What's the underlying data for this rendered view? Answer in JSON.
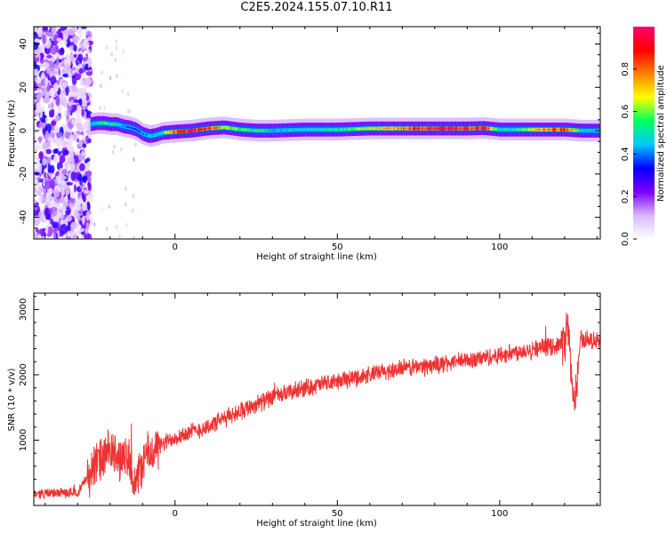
{
  "title": "C2E5.2024.155.07.10.R11",
  "colors": {
    "line": "#ee3333",
    "axis": "#000000",
    "colormap": [
      "#ffffff",
      "#d9b8ff",
      "#7a00ff",
      "#0000ff",
      "#00c8ff",
      "#00ff60",
      "#ffff00",
      "#ff8000",
      "#ff0000",
      "#ff0070"
    ]
  },
  "chart_data": [
    {
      "type": "heatmap",
      "title": "",
      "xlabel": "Height of straight line (km)",
      "ylabel": "Frequency (Hz)",
      "xlim": [
        -43.5,
        131
      ],
      "ylim": [
        -50,
        48
      ],
      "xticks": [
        0,
        50,
        100
      ],
      "yticks": [
        -40,
        -20,
        0,
        20,
        40
      ],
      "colorbar": {
        "label": "Normalized spectral amplitude",
        "range": [
          0,
          1
        ],
        "ticks": [
          0.0,
          0.2,
          0.4,
          0.6,
          0.8
        ]
      },
      "ridge": {
        "x": [
          -26,
          -24,
          -22,
          -20,
          -18,
          -16,
          -14,
          -12,
          -10,
          -8,
          -6,
          -4,
          0,
          5,
          10,
          15,
          20,
          25,
          30,
          40,
          50,
          60,
          70,
          80,
          90,
          95,
          100,
          105,
          110,
          115,
          120,
          125,
          131
        ],
        "y": [
          3,
          3.5,
          3.5,
          3,
          3,
          2,
          1.5,
          0.5,
          -1.5,
          -2.5,
          -2,
          -1,
          -0.5,
          0,
          1,
          1.5,
          0.5,
          0,
          0,
          0.5,
          0.5,
          1,
          1,
          1,
          1,
          1.2,
          0.5,
          0.5,
          0.5,
          0.5,
          0.5,
          0,
          0
        ],
        "amplitude": [
          0.4,
          0.55,
          0.6,
          0.55,
          0.5,
          0.4,
          0.35,
          0.3,
          0.4,
          0.45,
          0.5,
          0.55,
          0.9,
          0.95,
          0.9,
          0.7,
          0.6,
          0.55,
          0.45,
          0.5,
          0.55,
          0.65,
          0.8,
          0.95,
          0.9,
          0.95,
          0.5,
          0.55,
          0.7,
          0.85,
          0.9,
          0.5,
          0.45
        ]
      },
      "noise_region": {
        "x": [
          -43.5,
          -26
        ],
        "y": [
          -50,
          48
        ]
      }
    },
    {
      "type": "line",
      "title": "",
      "xlabel": "Height of straight line (km)",
      "ylabel": "SNR (10 * v/v)",
      "xlim": [
        -43.5,
        131
      ],
      "ylim": [
        0,
        3250
      ],
      "xticks": [
        0,
        50,
        100
      ],
      "yticks": [
        1000,
        2000,
        3000
      ],
      "envelope": {
        "x": [
          -43.5,
          -30,
          -25,
          -20,
          -15,
          -12,
          -10,
          -5,
          0,
          10,
          20,
          30,
          40,
          50,
          60,
          70,
          80,
          90,
          100,
          110,
          118,
          120,
          121,
          122,
          123,
          125,
          131
        ],
        "y": [
          180,
          200,
          600,
          800,
          700,
          300,
          700,
          900,
          1050,
          1200,
          1450,
          1650,
          1800,
          1900,
          2000,
          2100,
          2150,
          2220,
          2300,
          2400,
          2450,
          2500,
          2800,
          2000,
          1500,
          2550,
          2500
        ]
      },
      "noise_amplitude": 160
    }
  ]
}
